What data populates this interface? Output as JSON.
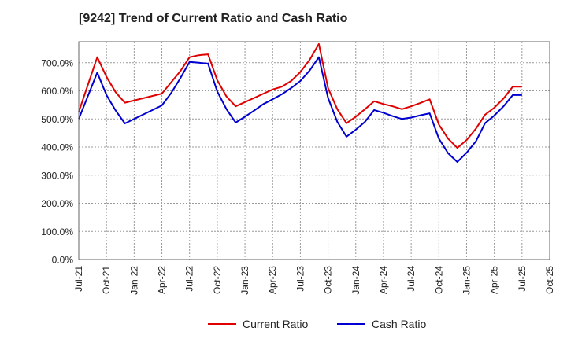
{
  "chart_data": {
    "type": "line",
    "title": "[9242]  Trend of Current Ratio and Cash Ratio",
    "xlabel": "",
    "ylabel": "",
    "ylim": [
      0,
      775
    ],
    "y_ticks": [
      0,
      100,
      200,
      300,
      400,
      500,
      600,
      700
    ],
    "y_tick_labels": [
      "0.0%",
      "100.0%",
      "200.0%",
      "300.0%",
      "400.0%",
      "500.0%",
      "600.0%",
      "700.0%"
    ],
    "x_tick_labels": [
      "Jul-21",
      "Oct-21",
      "Jan-22",
      "Apr-22",
      "Jul-22",
      "Oct-22",
      "Jan-23",
      "Apr-23",
      "Jul-23",
      "Oct-23",
      "Jan-24",
      "Apr-24",
      "Jul-24",
      "Oct-24",
      "Jan-25",
      "Apr-25",
      "Jul-25",
      "Oct-25"
    ],
    "x_range_months": [
      0,
      51
    ],
    "grid": true,
    "legend_position": "bottom",
    "series": [
      {
        "name": "Current Ratio",
        "color": "#e00000",
        "x": [
          0,
          2,
          3,
          4,
          5,
          9,
          10,
          11,
          12,
          13,
          14,
          15,
          16,
          17,
          18,
          19,
          20,
          21,
          22,
          23,
          24,
          25,
          26,
          27,
          28,
          29,
          30,
          31,
          32,
          33,
          34,
          35,
          36,
          37,
          38,
          39,
          40,
          41,
          42,
          43,
          44,
          45,
          46,
          47,
          48
        ],
        "values": [
          525,
          720,
          650,
          595,
          558,
          590,
          630,
          670,
          720,
          727,
          730,
          638,
          580,
          545,
          560,
          575,
          590,
          605,
          615,
          635,
          667,
          710,
          767,
          610,
          535,
          485,
          508,
          535,
          563,
          553,
          545,
          535,
          545,
          557,
          570,
          480,
          430,
          397,
          425,
          465,
          515,
          540,
          573,
          615,
          615
        ]
      },
      {
        "name": "Cash Ratio",
        "color": "#0000d0",
        "x": [
          0,
          2,
          3,
          4,
          5,
          9,
          10,
          11,
          12,
          13,
          14,
          15,
          16,
          17,
          18,
          19,
          20,
          21,
          22,
          23,
          24,
          25,
          26,
          27,
          28,
          29,
          30,
          31,
          32,
          33,
          34,
          35,
          36,
          37,
          38,
          39,
          40,
          41,
          42,
          43,
          44,
          45,
          46,
          47,
          48
        ],
        "values": [
          500,
          665,
          585,
          530,
          484,
          548,
          592,
          645,
          703,
          700,
          697,
          598,
          535,
          487,
          508,
          530,
          553,
          570,
          588,
          610,
          635,
          672,
          720,
          575,
          490,
          437,
          462,
          490,
          532,
          522,
          510,
          500,
          505,
          513,
          520,
          430,
          378,
          347,
          380,
          420,
          485,
          512,
          545,
          585,
          585
        ]
      }
    ]
  }
}
